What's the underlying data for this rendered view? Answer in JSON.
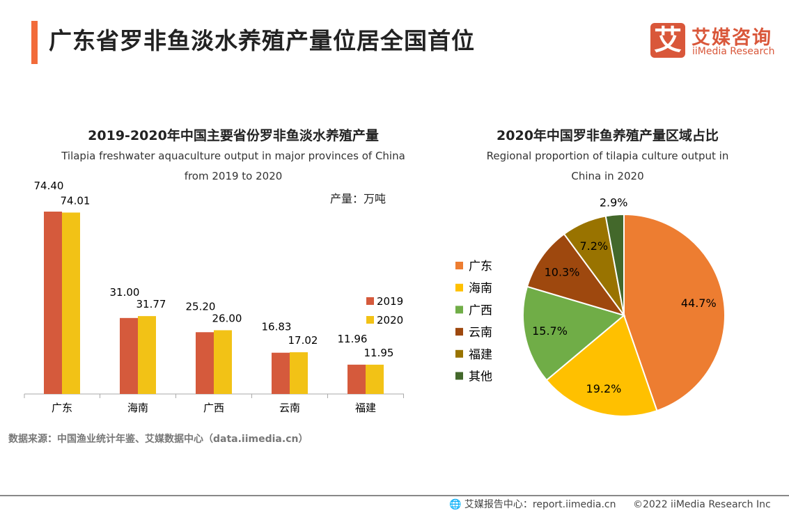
{
  "title": "广东省罗非鱼淡水养殖产量位居全国首位",
  "logo": {
    "mark": "艾",
    "cn": "艾媒咨询",
    "en": "iiMedia Research"
  },
  "source": "数据来源：中国渔业统计年鉴、艾媒数据中心（data.iimedia.cn）",
  "footer": {
    "icon": "globe-icon",
    "report": "艾媒报告中心：report.iimedia.cn",
    "copyright": "©2022  iiMedia Research  Inc"
  },
  "chart_data": [
    {
      "type": "bar",
      "title": "2019-2020年中国主要省份罗非鱼淡水养殖产量",
      "subtitle": "Tilapia freshwater aquaculture output in major provinces of China from 2019 to 2020",
      "unit": "产量：万吨",
      "categories": [
        "广东",
        "海南",
        "广西",
        "云南",
        "福建"
      ],
      "series": [
        {
          "name": "2019",
          "color": "#d55a3c",
          "values": [
            74.4,
            31.0,
            25.2,
            16.83,
            11.96
          ]
        },
        {
          "name": "2020",
          "color": "#f2c216",
          "values": [
            74.01,
            31.77,
            26.0,
            17.02,
            11.95
          ]
        }
      ],
      "ylim": [
        0,
        80
      ],
      "legend": "right"
    },
    {
      "type": "pie",
      "title": "2020年中国罗非鱼养殖产量区域占比",
      "subtitle": "Regional proportion of tilapia culture output in China in 2020",
      "labels": [
        "广东",
        "海南",
        "广西",
        "云南",
        "福建",
        "其他"
      ],
      "values": [
        44.7,
        19.2,
        15.7,
        10.3,
        7.2,
        2.9
      ],
      "value_labels": [
        "44.7%",
        "19.2%",
        "15.7%",
        "10.3%",
        "7.2%",
        "2.9%"
      ],
      "colors": [
        "#ED7D31",
        "#FFC000",
        "#70AD47",
        "#9E480E",
        "#997300",
        "#43682B"
      ],
      "legend": "left"
    }
  ]
}
